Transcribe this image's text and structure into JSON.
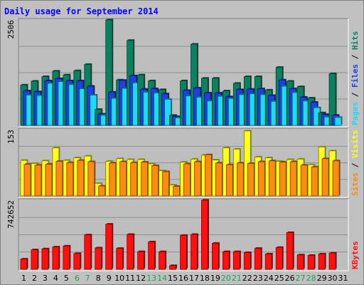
{
  "colors": {
    "background": "#C0C0C0",
    "frame_bg": "#BEBEBE",
    "hits": "#0E8060",
    "files": "#1E40E0",
    "pages": "#20D8F8",
    "visits": "#FFFF20",
    "sites": "#FF8C10",
    "kbytes": "#FF1010",
    "title": "#0000FF",
    "weekend_label": "#20A060",
    "weekday_label": "#000000",
    "slash": "#000000"
  },
  "chart_data": {
    "type": "bar",
    "title": "Daily usage for September 2014",
    "days": [
      "1",
      "2",
      "3",
      "4",
      "5",
      "6",
      "7",
      "8",
      "9",
      "10",
      "11",
      "12",
      "13",
      "14",
      "15",
      "16",
      "17",
      "18",
      "19",
      "20",
      "21",
      "22",
      "23",
      "24",
      "25",
      "26",
      "27",
      "28",
      "29",
      "30",
      "31"
    ],
    "weekend_days": [
      "6",
      "7",
      "13",
      "14",
      "20",
      "21",
      "27",
      "28"
    ],
    "panels": [
      {
        "name": "top",
        "max_label": "2506",
        "ymax": 2506,
        "legend": [
          "Pages",
          "Files",
          "Hits"
        ],
        "series": [
          {
            "name": "Hits",
            "values": [
              960,
              1050,
              1160,
              1290,
              1200,
              1300,
              1450,
              380,
              2506,
              1080,
              2020,
              1200,
              1060,
              850,
              240,
              1060,
              1930,
              1120,
              1120,
              820,
              1000,
              1160,
              1160,
              840,
              1380,
              1050,
              920,
              650,
              300,
              1230,
              0
            ]
          },
          {
            "name": "Files",
            "values": [
              820,
              800,
              1060,
              1110,
              1060,
              1060,
              930,
              270,
              790,
              1070,
              1180,
              860,
              870,
              750,
              210,
              830,
              890,
              770,
              770,
              680,
              850,
              860,
              870,
              710,
              1080,
              870,
              670,
              550,
              260,
              240,
              0
            ]
          },
          {
            "name": "Pages",
            "values": [
              720,
              710,
              1000,
              1040,
              970,
              870,
              720,
              240,
              640,
              880,
              1010,
              790,
              770,
              620,
              180,
              700,
              670,
              580,
              690,
              640,
              730,
              750,
              730,
              570,
              930,
              780,
              580,
              420,
              200,
              190,
              0
            ]
          }
        ]
      },
      {
        "name": "middle",
        "max_label": "153",
        "ymax": 153,
        "legend": [
          "Sites",
          "Visits"
        ],
        "series": [
          {
            "name": "Visits",
            "values": [
              82,
              75,
              81,
              111,
              82,
              88,
              92,
              29,
              80,
              86,
              84,
              84,
              74,
              58,
              25,
              78,
              85,
              94,
              83,
              111,
              108,
              150,
              90,
              88,
              80,
              84,
              85,
              72,
              113,
              104,
              0
            ]
          },
          {
            "name": "Sites",
            "values": [
              73,
              71,
              73,
              80,
              77,
              82,
              79,
              23,
              76,
              79,
              77,
              78,
              70,
              56,
              22,
              74,
              79,
              95,
              76,
              72,
              76,
              75,
              79,
              81,
              78,
              79,
              71,
              67,
              86,
              81,
              0
            ]
          }
        ]
      },
      {
        "name": "bottom",
        "max_label": "742652",
        "ymax": 742652,
        "legend": [
          "KBytes"
        ],
        "series": [
          {
            "name": "KBytes",
            "values": [
              110000,
              210000,
              220000,
              240000,
              250000,
              170000,
              370000,
              230000,
              485000,
              225000,
              375000,
              190000,
              295000,
              190000,
              40000,
              365000,
              375000,
              742652,
              280000,
              190000,
              190000,
              180000,
              225000,
              165000,
              235000,
              395000,
              155000,
              150000,
              165000,
              175000,
              0
            ]
          }
        ]
      }
    ]
  }
}
